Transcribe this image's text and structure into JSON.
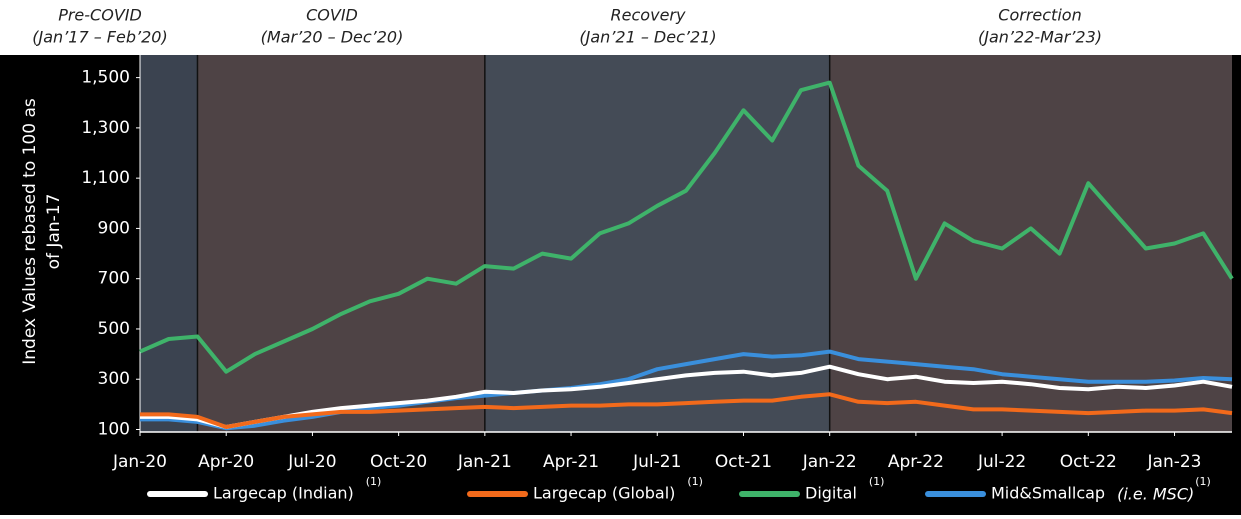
{
  "chart_data": {
    "type": "line",
    "ylabel": [
      "Index Values rebased to 100 as",
      "of Jan-17"
    ],
    "phases": [
      {
        "name": "Pre-COVID",
        "period": "(Jan’17 – Feb’20)",
        "color": "#3b4350",
        "start": "2020-01",
        "end": "2020-03"
      },
      {
        "name": "COVID",
        "period": "(Mar’20 – Dec’20)",
        "color": "#4e4345",
        "start": "2020-03",
        "end": "2021-01"
      },
      {
        "name": "Recovery",
        "period": "(Jan’21 – Dec’21)",
        "color": "#444b56",
        "start": "2021-01",
        "end": "2022-01"
      },
      {
        "name": "Correction",
        "period": "(Jan’22-Mar’23)",
        "color": "#4e4345",
        "start": "2022-01",
        "end": "2023-03"
      }
    ],
    "x": [
      "2020-01",
      "2020-02",
      "2020-03",
      "2020-04",
      "2020-05",
      "2020-06",
      "2020-07",
      "2020-08",
      "2020-09",
      "2020-10",
      "2020-11",
      "2020-12",
      "2021-01",
      "2021-02",
      "2021-03",
      "2021-04",
      "2021-05",
      "2021-06",
      "2021-07",
      "2021-08",
      "2021-09",
      "2021-10",
      "2021-11",
      "2021-12",
      "2022-01",
      "2022-02",
      "2022-03",
      "2022-04",
      "2022-05",
      "2022-06",
      "2022-07",
      "2022-08",
      "2022-09",
      "2022-10",
      "2022-11",
      "2022-12",
      "2023-01",
      "2023-02",
      "2023-03"
    ],
    "xlim": [
      "2020-01",
      "2023-03"
    ],
    "xticks": [
      {
        "value": "2020-01",
        "label": "Jan-20"
      },
      {
        "value": "2020-04",
        "label": "Apr-20"
      },
      {
        "value": "2020-07",
        "label": "Jul-20"
      },
      {
        "value": "2020-10",
        "label": "Oct-20"
      },
      {
        "value": "2021-01",
        "label": "Jan-21"
      },
      {
        "value": "2021-04",
        "label": "Apr-21"
      },
      {
        "value": "2021-07",
        "label": "Jul-21"
      },
      {
        "value": "2021-10",
        "label": "Oct-21"
      },
      {
        "value": "2022-01",
        "label": "Jan-22"
      },
      {
        "value": "2022-04",
        "label": "Apr-22"
      },
      {
        "value": "2022-07",
        "label": "Jul-22"
      },
      {
        "value": "2022-10",
        "label": "Oct-22"
      },
      {
        "value": "2023-01",
        "label": "Jan-23"
      }
    ],
    "ylim": [
      90,
      1590
    ],
    "yticks": [
      100,
      300,
      500,
      700,
      900,
      {
        "value": 1100,
        "label": "1,100"
      },
      {
        "value": 1300,
        "label": "1,300"
      },
      {
        "value": 1500,
        "label": "1,500"
      }
    ],
    "series": [
      {
        "name": "Largecap (Indian)",
        "note": "(1)",
        "color": "#ffffff",
        "values": [
          150,
          150,
          140,
          110,
          130,
          150,
          170,
          185,
          195,
          205,
          215,
          230,
          250,
          245,
          255,
          260,
          270,
          285,
          300,
          315,
          325,
          330,
          315,
          325,
          350,
          320,
          300,
          310,
          290,
          285,
          290,
          280,
          265,
          260,
          270,
          265,
          275,
          290,
          270
        ]
      },
      {
        "name": "Largecap (Global)",
        "note": "(1)",
        "color": "#f26a1b",
        "values": [
          160,
          160,
          150,
          110,
          130,
          150,
          160,
          170,
          170,
          175,
          180,
          185,
          190,
          185,
          190,
          195,
          195,
          200,
          200,
          205,
          210,
          215,
          215,
          230,
          240,
          210,
          205,
          210,
          195,
          180,
          180,
          175,
          170,
          165,
          170,
          175,
          175,
          180,
          165
        ]
      },
      {
        "name": "Digital",
        "note": "(1)",
        "color": "#3fb36a",
        "values": [
          410,
          460,
          470,
          330,
          400,
          450,
          500,
          560,
          610,
          640,
          700,
          680,
          750,
          740,
          800,
          780,
          880,
          920,
          990,
          1050,
          1200,
          1370,
          1250,
          1450,
          1480,
          1150,
          1050,
          700,
          920,
          850,
          820,
          900,
          800,
          1080,
          950,
          820,
          840,
          880,
          700
        ]
      },
      {
        "name": "Mid&Smallcap",
        "qualifier": "(i.e. MSC)",
        "note": "(1)",
        "color": "#3a8fdc",
        "values": [
          140,
          140,
          130,
          105,
          115,
          135,
          150,
          170,
          185,
          195,
          210,
          225,
          235,
          245,
          255,
          265,
          280,
          300,
          340,
          360,
          380,
          400,
          390,
          395,
          410,
          380,
          370,
          360,
          350,
          340,
          320,
          310,
          300,
          290,
          290,
          290,
          295,
          305,
          300
        ]
      }
    ]
  }
}
